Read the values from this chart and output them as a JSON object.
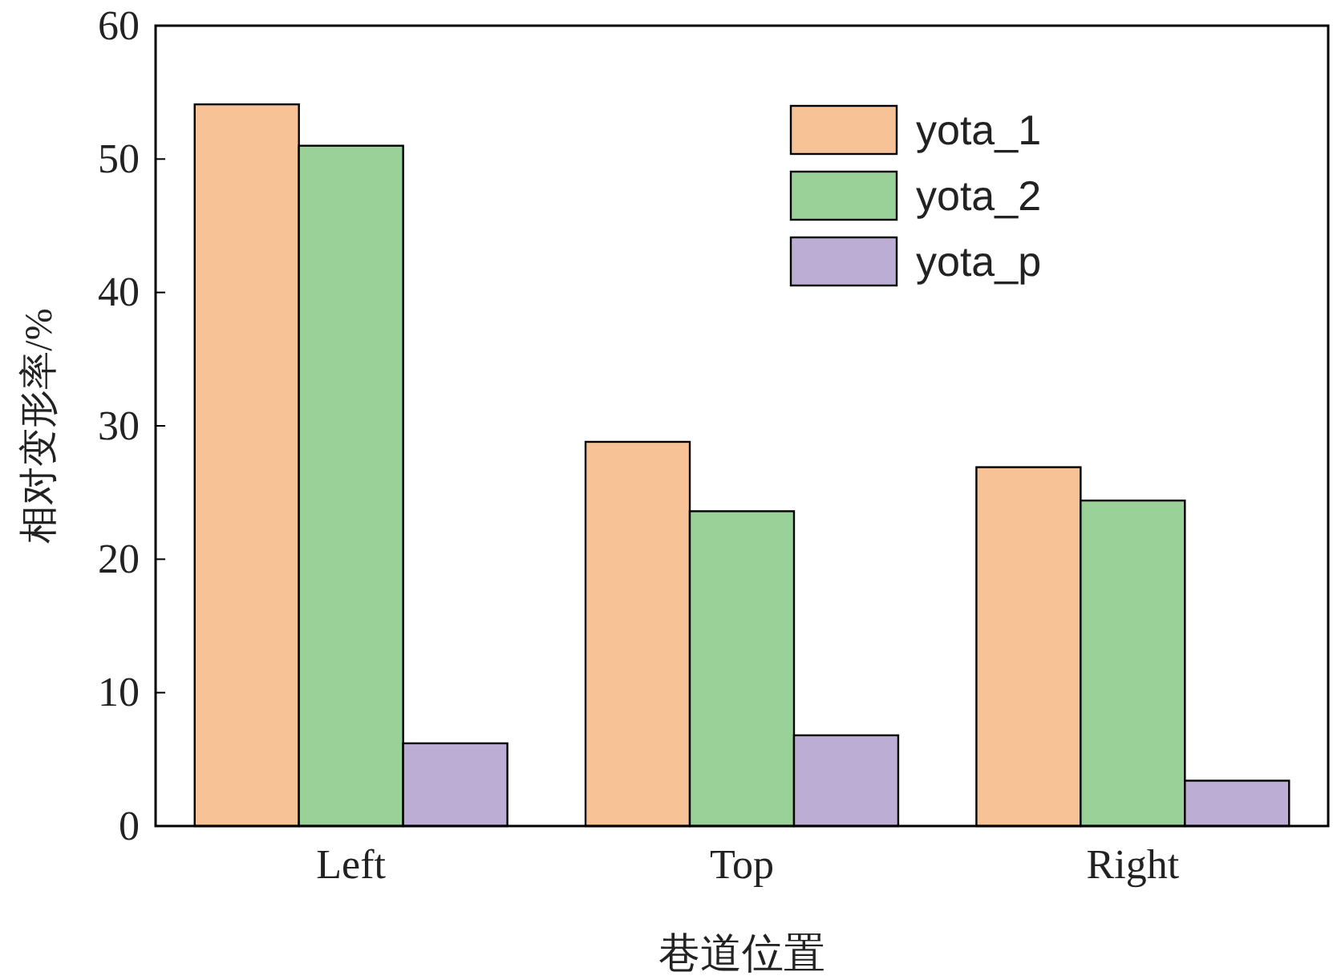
{
  "chart_data": {
    "type": "bar",
    "xlabel": "巷道位置",
    "ylabel": "相对变形率/%",
    "categories": [
      "Left",
      "Top",
      "Right"
    ],
    "series": [
      {
        "name": "yota_1",
        "color": "#f7c396",
        "values": [
          54.1,
          28.8,
          26.9
        ]
      },
      {
        "name": "yota_2",
        "color": "#99d198",
        "values": [
          51.0,
          23.6,
          24.4
        ]
      },
      {
        "name": "yota_p",
        "color": "#bcadd4",
        "values": [
          6.2,
          6.8,
          3.4
        ]
      }
    ],
    "ylim": [
      0,
      60
    ],
    "yticks": [
      0,
      10,
      20,
      30,
      40,
      50,
      60
    ],
    "grid": false,
    "legend": "top right"
  }
}
